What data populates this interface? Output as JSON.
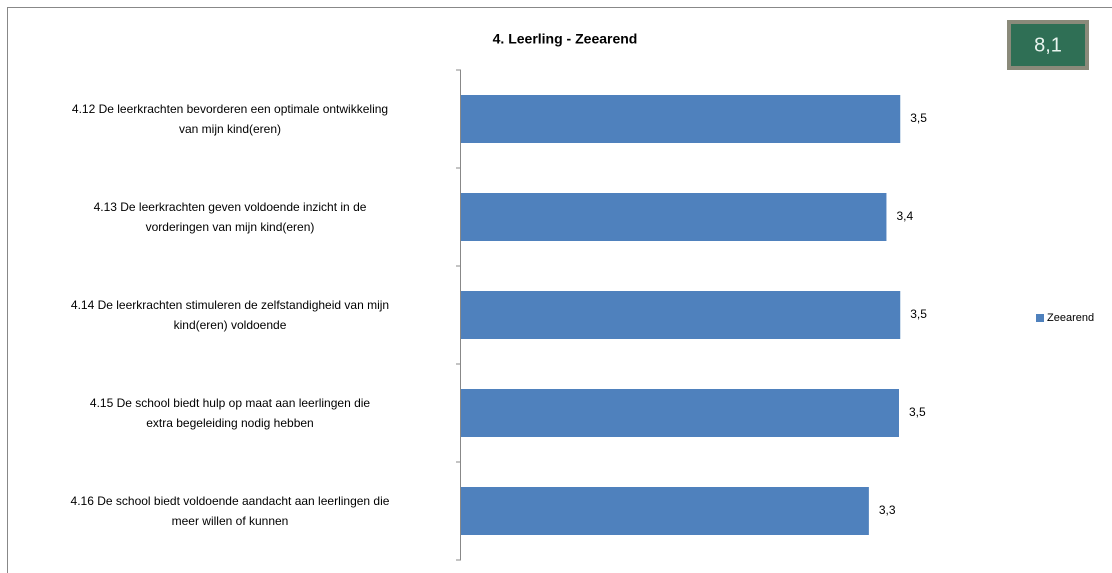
{
  "chart_data": {
    "type": "barh",
    "title": "4. Leerling - Zeearend",
    "score": "8,1",
    "categories": [
      [
        "4.12 De leerkrachten bevorderen een optimale ontwikkeling",
        "van mijn kind(eren)"
      ],
      [
        "4.13 De leerkrachten geven voldoende inzicht in de",
        "vorderingen van mijn kind(eren)"
      ],
      [
        "4.14 De leerkrachten stimuleren de zelfstandigheid van mijn",
        "kind(eren) voldoende"
      ],
      [
        "4.15 De school biedt hulp op maat aan leerlingen die",
        "extra begeleiding nodig hebben"
      ],
      [
        "4.16 De school biedt voldoende aandacht aan leerlingen die",
        "meer willen of kunnen"
      ]
    ],
    "series": [
      {
        "name": "Zeearend",
        "color": "#4f81bd",
        "values": [
          3.5,
          3.39,
          3.5,
          3.49,
          3.25
        ],
        "value_labels": [
          "3,5",
          "3,4",
          "3,5",
          "3,5",
          "3,3"
        ]
      }
    ],
    "xlim": [
      0,
      4
    ],
    "legend": "right"
  }
}
